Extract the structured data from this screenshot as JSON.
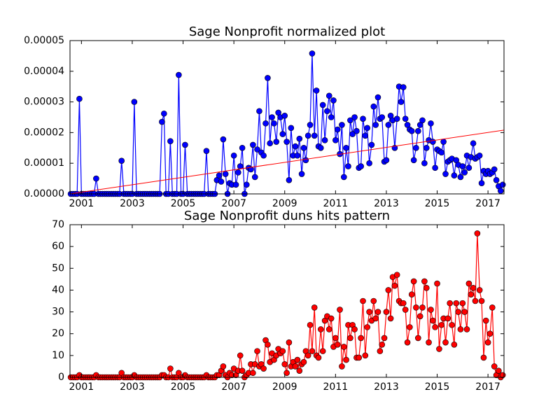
{
  "chart_data": [
    {
      "type": "line",
      "title": "Sage Nonprofit normalized plot",
      "x": [
        2000.58,
        2000.67,
        2000.75,
        2000.83,
        2000.92,
        2001.0,
        2001.08,
        2001.17,
        2001.25,
        2001.33,
        2001.42,
        2001.5,
        2001.58,
        2001.67,
        2001.75,
        2001.83,
        2001.92,
        2002.0,
        2002.08,
        2002.17,
        2002.25,
        2002.33,
        2002.42,
        2002.5,
        2002.58,
        2002.67,
        2002.75,
        2002.83,
        2002.92,
        2003.0,
        2003.08,
        2003.17,
        2003.25,
        2003.33,
        2003.42,
        2003.5,
        2003.58,
        2003.67,
        2003.75,
        2003.83,
        2003.92,
        2004.0,
        2004.08,
        2004.17,
        2004.25,
        2004.33,
        2004.42,
        2004.5,
        2004.58,
        2004.67,
        2004.75,
        2004.83,
        2004.92,
        2005.0,
        2005.08,
        2005.17,
        2005.25,
        2005.33,
        2005.42,
        2005.5,
        2005.58,
        2005.67,
        2005.75,
        2005.83,
        2005.92,
        2006.0,
        2006.08,
        2006.17,
        2006.25,
        2006.33,
        2006.42,
        2006.5,
        2006.58,
        2006.67,
        2006.75,
        2006.83,
        2006.92,
        2007.0,
        2007.08,
        2007.17,
        2007.25,
        2007.33,
        2007.42,
        2007.5,
        2007.58,
        2007.67,
        2007.75,
        2007.83,
        2007.92,
        2008.0,
        2008.08,
        2008.17,
        2008.25,
        2008.33,
        2008.42,
        2008.5,
        2008.58,
        2008.67,
        2008.75,
        2008.83,
        2008.92,
        2009.0,
        2009.08,
        2009.17,
        2009.25,
        2009.33,
        2009.42,
        2009.5,
        2009.58,
        2009.67,
        2009.75,
        2009.83,
        2009.92,
        2010.0,
        2010.08,
        2010.17,
        2010.25,
        2010.33,
        2010.42,
        2010.5,
        2010.58,
        2010.67,
        2010.75,
        2010.83,
        2010.92,
        2011.0,
        2011.08,
        2011.17,
        2011.25,
        2011.33,
        2011.42,
        2011.5,
        2011.58,
        2011.67,
        2011.75,
        2011.83,
        2011.92,
        2012.0,
        2012.08,
        2012.17,
        2012.25,
        2012.33,
        2012.42,
        2012.5,
        2012.58,
        2012.67,
        2012.75,
        2012.83,
        2012.92,
        2013.0,
        2013.08,
        2013.17,
        2013.25,
        2013.33,
        2013.42,
        2013.5,
        2013.58,
        2013.67,
        2013.75,
        2013.83,
        2013.92,
        2014.0,
        2014.08,
        2014.17,
        2014.25,
        2014.33,
        2014.42,
        2014.5,
        2014.58,
        2014.67,
        2014.75,
        2014.83,
        2014.92,
        2015.0,
        2015.08,
        2015.17,
        2015.25,
        2015.33,
        2015.42,
        2015.5,
        2015.58,
        2015.67,
        2015.75,
        2015.83,
        2015.92,
        2016.0,
        2016.08,
        2016.17,
        2016.25,
        2016.33,
        2016.42,
        2016.5,
        2016.58,
        2016.67,
        2016.75,
        2016.83,
        2016.92,
        2017.0,
        2017.08,
        2017.17,
        2017.25,
        2017.33,
        2017.42,
        2017.5,
        2017.58
      ],
      "series": [
        {
          "color": "#0000ff",
          "values": [
            0,
            0,
            0,
            0,
            3.1e-05,
            0,
            0,
            0,
            0,
            0,
            0,
            0,
            5e-06,
            0,
            0,
            0,
            0,
            0,
            0,
            0,
            0,
            0,
            0,
            0,
            1.08e-05,
            0,
            0,
            0,
            0,
            0,
            3e-05,
            0,
            0,
            0,
            0,
            0,
            0,
            0,
            0,
            0,
            0,
            0,
            0,
            2.35e-05,
            2.62e-05,
            0,
            0,
            1.72e-05,
            0,
            0,
            0,
            3.88e-05,
            0,
            0,
            1.6e-05,
            0,
            0,
            0,
            0,
            0,
            0,
            0,
            0,
            0,
            1.4e-05,
            0,
            0,
            0,
            0,
            4.5e-06,
            6e-06,
            4e-06,
            1.78e-05,
            6.5e-06,
            0,
            3.5e-06,
            3e-06,
            1.25e-05,
            3e-06,
            7e-06,
            9e-06,
            1.5e-05,
            0,
            3e-06,
            8.5e-06,
            8e-06,
            1.6e-05,
            5.5e-06,
            1.45e-05,
            2.7e-05,
            1.35e-05,
            1.25e-05,
            2.3e-05,
            3.78e-05,
            1.65e-05,
            2.5e-05,
            2.3e-05,
            1.7e-05,
            2.65e-05,
            2.5e-05,
            1.95e-05,
            2.55e-05,
            1.7e-05,
            4.5e-06,
            2.15e-05,
            1.25e-05,
            1.55e-05,
            1.25e-05,
            1.8e-05,
            6.5e-06,
            1.5e-05,
            1.1e-05,
            1.9e-05,
            2.25e-05,
            4.58e-05,
            1.9e-05,
            3.37e-05,
            1.55e-05,
            1.5e-05,
            2.9e-05,
            1.75e-05,
            2.7e-05,
            3.2e-05,
            2.5e-05,
            3.05e-05,
            1.75e-05,
            2.1e-05,
            1.3e-05,
            2.25e-05,
            5.5e-06,
            1.5e-05,
            9e-06,
            2.4e-05,
            1.95e-05,
            2.5e-05,
            2.05e-05,
            8.5e-06,
            9e-06,
            2.45e-05,
            1.9e-05,
            2.15e-05,
            1e-05,
            1.6e-05,
            2.85e-05,
            2.25e-05,
            3.15e-05,
            2.45e-05,
            2.5e-05,
            1.05e-05,
            1.1e-05,
            2.25e-05,
            2.55e-05,
            2.4e-05,
            1.5e-05,
            2.45e-05,
            3.5e-05,
            3e-05,
            3.48e-05,
            2.45e-05,
            2.25e-05,
            2.1e-05,
            2.05e-05,
            1.1e-05,
            1.5e-05,
            2.05e-05,
            2.25e-05,
            2.4e-05,
            1e-05,
            1.5e-05,
            1.75e-05,
            2.3e-05,
            1.7e-05,
            8.5e-06,
            1.45e-05,
            1.4e-05,
            1.35e-05,
            1.7e-05,
            6.5e-06,
            1.05e-05,
            1.1e-05,
            1.15e-05,
            6e-06,
            1.1e-05,
            9.5e-06,
            5.5e-06,
            9e-06,
            7e-06,
            1.25e-05,
            8.5e-06,
            1.2e-05,
            1.65e-05,
            1.15e-05,
            1.2e-05,
            1.25e-05,
            3.5e-06,
            7.5e-06,
            6.5e-06,
            7.5e-06,
            6.5e-06,
            7e-06,
            8e-06,
            4.5e-06,
            2.5e-06,
            1e-06,
            3e-06
          ]
        }
      ],
      "trend": {
        "color": "#ff0000",
        "x": [
          2000.55,
          2017.63
        ],
        "values": [
          0,
          2.08e-05
        ]
      },
      "xlim": [
        2000.55,
        2017.63
      ],
      "xticks": [
        2001,
        2003,
        2005,
        2007,
        2009,
        2011,
        2013,
        2015,
        2017
      ],
      "ylim": [
        0,
        5e-05
      ],
      "yticks": [
        {
          "value": 0,
          "label": "0.00000"
        },
        {
          "value": 1e-05,
          "label": "0.00001"
        },
        {
          "value": 2e-05,
          "label": "0.00002"
        },
        {
          "value": 3e-05,
          "label": "0.00003"
        },
        {
          "value": 4e-05,
          "label": "0.00004"
        },
        {
          "value": 5e-05,
          "label": "0.00005"
        }
      ]
    },
    {
      "type": "line",
      "title": "Sage Nonprofit duns hits pattern",
      "x": [
        2000.58,
        2000.67,
        2000.75,
        2000.83,
        2000.92,
        2001.0,
        2001.08,
        2001.17,
        2001.25,
        2001.33,
        2001.42,
        2001.5,
        2001.58,
        2001.67,
        2001.75,
        2001.83,
        2001.92,
        2002.0,
        2002.08,
        2002.17,
        2002.25,
        2002.33,
        2002.42,
        2002.5,
        2002.58,
        2002.67,
        2002.75,
        2002.83,
        2002.92,
        2003.0,
        2003.08,
        2003.17,
        2003.25,
        2003.33,
        2003.42,
        2003.5,
        2003.58,
        2003.67,
        2003.75,
        2003.83,
        2003.92,
        2004.0,
        2004.08,
        2004.17,
        2004.25,
        2004.33,
        2004.42,
        2004.5,
        2004.58,
        2004.67,
        2004.75,
        2004.83,
        2004.92,
        2005.0,
        2005.08,
        2005.17,
        2005.25,
        2005.33,
        2005.42,
        2005.5,
        2005.58,
        2005.67,
        2005.75,
        2005.83,
        2005.92,
        2006.0,
        2006.08,
        2006.17,
        2006.25,
        2006.33,
        2006.42,
        2006.5,
        2006.58,
        2006.67,
        2006.75,
        2006.83,
        2006.92,
        2007.0,
        2007.08,
        2007.17,
        2007.25,
        2007.33,
        2007.42,
        2007.5,
        2007.58,
        2007.67,
        2007.75,
        2007.83,
        2007.92,
        2008.0,
        2008.08,
        2008.17,
        2008.25,
        2008.33,
        2008.42,
        2008.5,
        2008.58,
        2008.67,
        2008.75,
        2008.83,
        2008.92,
        2009.0,
        2009.08,
        2009.17,
        2009.25,
        2009.33,
        2009.42,
        2009.5,
        2009.58,
        2009.67,
        2009.75,
        2009.83,
        2009.92,
        2010.0,
        2010.08,
        2010.17,
        2010.25,
        2010.33,
        2010.42,
        2010.5,
        2010.58,
        2010.67,
        2010.75,
        2010.83,
        2010.92,
        2011.0,
        2011.08,
        2011.17,
        2011.25,
        2011.33,
        2011.42,
        2011.5,
        2011.58,
        2011.67,
        2011.75,
        2011.83,
        2011.92,
        2012.0,
        2012.08,
        2012.17,
        2012.25,
        2012.33,
        2012.42,
        2012.5,
        2012.58,
        2012.67,
        2012.75,
        2012.83,
        2012.92,
        2013.0,
        2013.08,
        2013.17,
        2013.25,
        2013.33,
        2013.42,
        2013.5,
        2013.58,
        2013.67,
        2013.75,
        2013.83,
        2013.92,
        2014.0,
        2014.08,
        2014.17,
        2014.25,
        2014.33,
        2014.42,
        2014.5,
        2014.58,
        2014.67,
        2014.75,
        2014.83,
        2014.92,
        2015.0,
        2015.08,
        2015.17,
        2015.25,
        2015.33,
        2015.42,
        2015.5,
        2015.58,
        2015.67,
        2015.75,
        2015.83,
        2015.92,
        2016.0,
        2016.08,
        2016.17,
        2016.25,
        2016.33,
        2016.42,
        2016.5,
        2016.58,
        2016.67,
        2016.75,
        2016.83,
        2016.92,
        2017.0,
        2017.08,
        2017.17,
        2017.25,
        2017.33,
        2017.42,
        2017.5,
        2017.58
      ],
      "series": [
        {
          "color": "#ff0000",
          "values": [
            0,
            0,
            0,
            0,
            1,
            0,
            0,
            0,
            0,
            0,
            0,
            0,
            1,
            0,
            0,
            0,
            0,
            0,
            0,
            0,
            0,
            0,
            0,
            0,
            2,
            0,
            0,
            0,
            0,
            0,
            1,
            0,
            0,
            0,
            0,
            0,
            0,
            0,
            0,
            0,
            0,
            0,
            0,
            1,
            1,
            0,
            0,
            4,
            0,
            0,
            0,
            2,
            0,
            0,
            1,
            0,
            0,
            0,
            0,
            0,
            0,
            0,
            0,
            0,
            1,
            0,
            0,
            0,
            0,
            1,
            1,
            3,
            5,
            1,
            0,
            2,
            1,
            4,
            1,
            3,
            10,
            3,
            0,
            1,
            2,
            6,
            2,
            6,
            12,
            5,
            6,
            4,
            17,
            15,
            7,
            11,
            8,
            10,
            13,
            11,
            12,
            6,
            2,
            16,
            5,
            7,
            5,
            8,
            3,
            6,
            7,
            12,
            10,
            24,
            12,
            32,
            10,
            9,
            22,
            12,
            26,
            28,
            22,
            27,
            14,
            18,
            15,
            31,
            5,
            14,
            8,
            24,
            18,
            24,
            22,
            9,
            9,
            18,
            35,
            10,
            23,
            30,
            26,
            35,
            27,
            30,
            12,
            15,
            18,
            30,
            40,
            27,
            46,
            42,
            47,
            35,
            34,
            34,
            31,
            16,
            23,
            38,
            44,
            32,
            18,
            28,
            32,
            44,
            41,
            16,
            31,
            26,
            23,
            43,
            13,
            24,
            27,
            16,
            27,
            34,
            24,
            15,
            34,
            30,
            22,
            34,
            30,
            22,
            43,
            38,
            41,
            35,
            66,
            40,
            35,
            9,
            26,
            16,
            20,
            32,
            5,
            1,
            3,
            0,
            1
          ]
        }
      ],
      "xlim": [
        2000.55,
        2017.63
      ],
      "xticks": [
        2001,
        2003,
        2005,
        2007,
        2009,
        2011,
        2013,
        2015,
        2017
      ],
      "ylim": [
        0,
        70
      ],
      "yticks": [
        0,
        10,
        20,
        30,
        40,
        50,
        60,
        70
      ]
    }
  ]
}
